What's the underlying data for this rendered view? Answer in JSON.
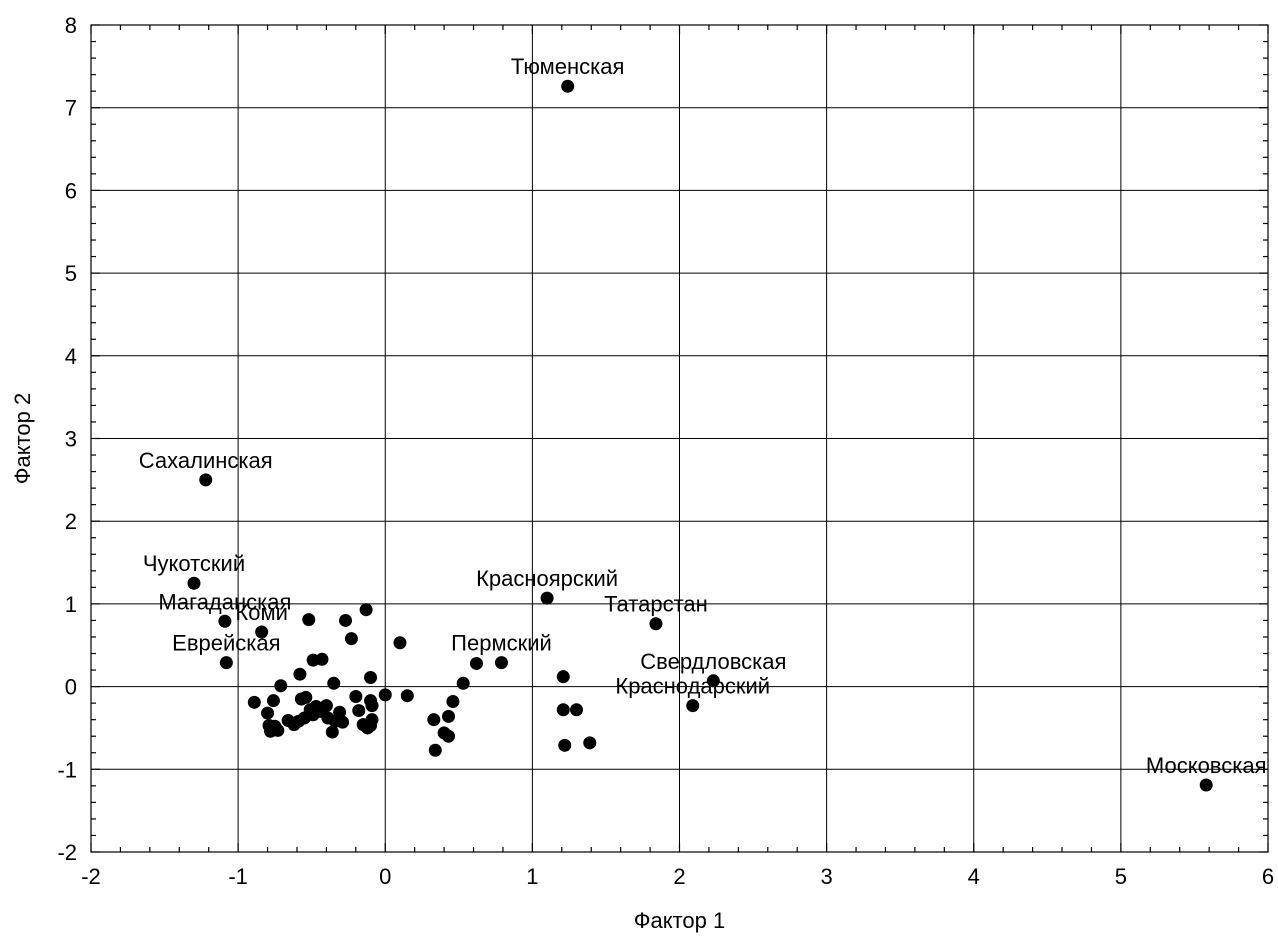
{
  "chart_data": {
    "type": "scatter",
    "title": "",
    "xlabel": "Фактор 1",
    "ylabel": "Фактор 2",
    "xlim": [
      -2,
      6
    ],
    "ylim": [
      -2,
      8
    ],
    "xticks": [
      -2,
      -1,
      0,
      1,
      2,
      3,
      4,
      5,
      6
    ],
    "yticks": [
      -2,
      -1,
      0,
      1,
      2,
      3,
      4,
      5,
      6,
      7,
      8
    ],
    "grid": true,
    "colors": {
      "point": "#000000",
      "grid": "#000000"
    },
    "labeled_points": [
      {
        "label": "Тюменская",
        "x": 1.24,
        "y": 7.26
      },
      {
        "label": "Сахалинская",
        "x": -1.22,
        "y": 2.5
      },
      {
        "label": "Чукотский",
        "x": -1.3,
        "y": 1.25
      },
      {
        "label": "Магаданская",
        "x": -1.09,
        "y": 0.79
      },
      {
        "label": "Коми",
        "x": -0.84,
        "y": 0.66
      },
      {
        "label": "Еврейская",
        "x": -1.08,
        "y": 0.29
      },
      {
        "label": "Красноярский",
        "x": 1.1,
        "y": 1.07
      },
      {
        "label": "Татарстан",
        "x": 1.84,
        "y": 0.76
      },
      {
        "label": "Пермский",
        "x": 0.79,
        "y": 0.29
      },
      {
        "label": "Свердловская",
        "x": 2.23,
        "y": 0.07
      },
      {
        "label": "Краснодарский",
        "x": 2.09,
        "y": -0.23
      },
      {
        "label": "Московская",
        "x": 5.58,
        "y": -1.19
      }
    ],
    "points": [
      {
        "x": -0.52,
        "y": 0.81
      },
      {
        "x": -0.27,
        "y": 0.8
      },
      {
        "x": -0.13,
        "y": 0.93
      },
      {
        "x": -0.23,
        "y": 0.58
      },
      {
        "x": 0.1,
        "y": 0.53
      },
      {
        "x": -0.49,
        "y": 0.32
      },
      {
        "x": -0.43,
        "y": 0.33
      },
      {
        "x": -0.58,
        "y": 0.15
      },
      {
        "x": -0.35,
        "y": 0.04
      },
      {
        "x": -0.1,
        "y": 0.11
      },
      {
        "x": 0.62,
        "y": 0.28
      },
      {
        "x": 0.53,
        "y": 0.04
      },
      {
        "x": -0.71,
        "y": 0.01
      },
      {
        "x": -0.89,
        "y": -0.19
      },
      {
        "x": -0.8,
        "y": -0.32
      },
      {
        "x": -0.76,
        "y": -0.17
      },
      {
        "x": -0.79,
        "y": -0.47
      },
      {
        "x": -0.78,
        "y": -0.54
      },
      {
        "x": -0.73,
        "y": -0.53
      },
      {
        "x": -0.75,
        "y": -0.48
      },
      {
        "x": -0.66,
        "y": -0.41
      },
      {
        "x": -0.62,
        "y": -0.46
      },
      {
        "x": -0.59,
        "y": -0.42
      },
      {
        "x": -0.57,
        "y": -0.15
      },
      {
        "x": -0.54,
        "y": -0.13
      },
      {
        "x": -0.55,
        "y": -0.38
      },
      {
        "x": -0.51,
        "y": -0.28
      },
      {
        "x": -0.49,
        "y": -0.34
      },
      {
        "x": -0.47,
        "y": -0.24
      },
      {
        "x": -0.44,
        "y": -0.3
      },
      {
        "x": -0.4,
        "y": -0.23
      },
      {
        "x": -0.39,
        "y": -0.38
      },
      {
        "x": -0.36,
        "y": -0.55
      },
      {
        "x": -0.34,
        "y": -0.42
      },
      {
        "x": -0.31,
        "y": -0.31
      },
      {
        "x": -0.29,
        "y": -0.43
      },
      {
        "x": -0.2,
        "y": -0.12
      },
      {
        "x": -0.18,
        "y": -0.29
      },
      {
        "x": -0.15,
        "y": -0.46
      },
      {
        "x": -0.12,
        "y": -0.5
      },
      {
        "x": -0.1,
        "y": -0.17
      },
      {
        "x": -0.09,
        "y": -0.23
      },
      {
        "x": -0.09,
        "y": -0.4
      },
      {
        "x": -0.1,
        "y": -0.47
      },
      {
        "x": 0.0,
        "y": -0.1
      },
      {
        "x": 0.15,
        "y": -0.11
      },
      {
        "x": 0.33,
        "y": -0.4
      },
      {
        "x": 0.4,
        "y": -0.56
      },
      {
        "x": 0.43,
        "y": -0.36
      },
      {
        "x": 0.43,
        "y": -0.6
      },
      {
        "x": 0.46,
        "y": -0.18
      },
      {
        "x": 0.34,
        "y": -0.77
      },
      {
        "x": 1.21,
        "y": 0.12
      },
      {
        "x": 1.21,
        "y": -0.28
      },
      {
        "x": 1.22,
        "y": -0.71
      },
      {
        "x": 1.3,
        "y": -0.28
      },
      {
        "x": 1.39,
        "y": -0.68
      }
    ]
  }
}
